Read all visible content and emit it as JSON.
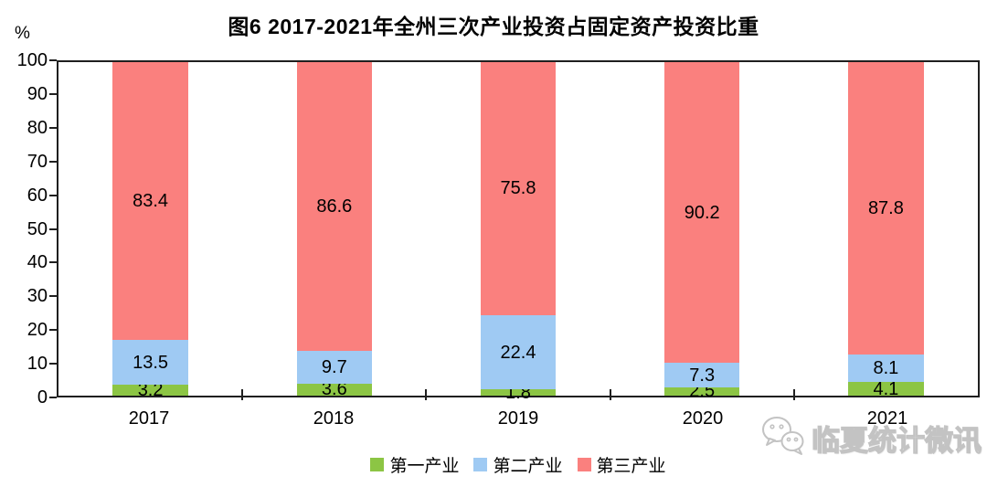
{
  "title": "图6  2017-2021年全州三次产业投资占固定资产投资比重",
  "y_axis": {
    "unit": "%",
    "tick_labels": [
      100,
      90,
      80,
      70,
      60,
      50,
      40,
      30,
      20,
      10,
      0
    ]
  },
  "chart_data": {
    "type": "bar",
    "stacked": true,
    "title": "图6  2017-2021年全州三次产业投资占固定资产投资比重",
    "ylabel": "%",
    "ylim": [
      0,
      100
    ],
    "y_tick_step": 10,
    "grid": false,
    "legend_position": "bottom",
    "categories": [
      "2017",
      "2018",
      "2019",
      "2020",
      "2021"
    ],
    "series": [
      {
        "name": "第一产业",
        "color": "#8CC544",
        "values": [
          3.2,
          3.6,
          1.8,
          2.5,
          4.1
        ]
      },
      {
        "name": "第二产业",
        "color": "#9FCAF3",
        "values": [
          13.5,
          9.7,
          22.4,
          7.3,
          8.1
        ]
      },
      {
        "name": "第三产业",
        "color": "#FA807E",
        "values": [
          83.4,
          86.6,
          75.8,
          90.2,
          87.8
        ]
      }
    ]
  },
  "colors": {
    "axis": "#1f1f1f",
    "primary_industry": "#8CC544",
    "secondary_industry": "#9FCAF3",
    "tertiary_industry": "#FA807E",
    "watermark": "#c3c3c3"
  },
  "watermark": {
    "icon": "wechat-icon",
    "text": "临夏统计微讯"
  }
}
